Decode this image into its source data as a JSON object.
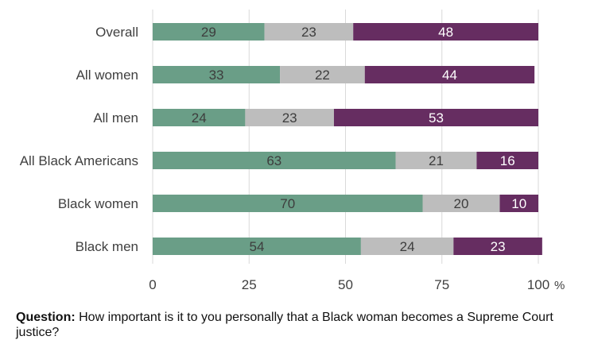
{
  "chart_data": {
    "type": "bar",
    "orientation": "horizontal",
    "stacked": true,
    "categories": [
      "Overall",
      "All women",
      "All men",
      "All Black Americans",
      "Black women",
      "Black men"
    ],
    "series": [
      {
        "color": "#6a9e87",
        "label_color": "#3d3d3d",
        "values": [
          29,
          33,
          24,
          63,
          70,
          54
        ]
      },
      {
        "color": "#bdbdbd",
        "label_color": "#3d3d3d",
        "values": [
          23,
          22,
          23,
          21,
          20,
          24
        ]
      },
      {
        "color": "#662d61",
        "label_color": "#ffffff",
        "values": [
          48,
          44,
          53,
          16,
          10,
          23
        ]
      }
    ],
    "xlim": [
      0,
      100
    ],
    "xticks": [
      "0",
      "25",
      "50",
      "75",
      "100"
    ],
    "xunit": "%",
    "grid": true
  },
  "footnote": {
    "label": "Question:",
    "text": "How important is it to you personally that a Black woman becomes a Supreme Court justice?"
  }
}
